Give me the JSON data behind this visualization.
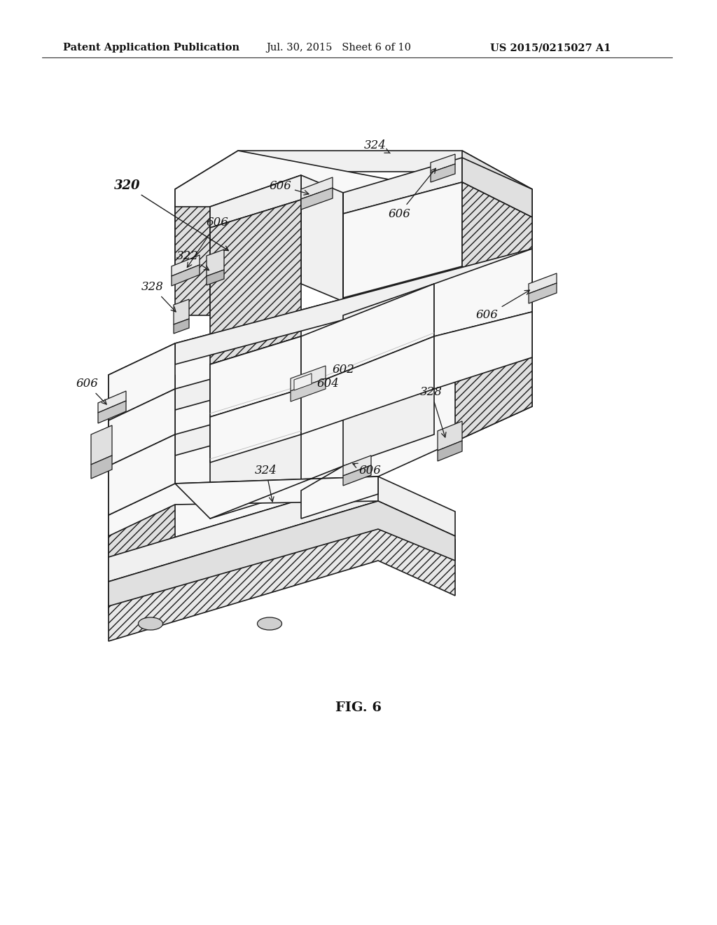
{
  "background_color": "#ffffff",
  "header_left": "Patent Application Publication",
  "header_mid": "Jul. 30, 2015   Sheet 6 of 10",
  "header_right": "US 2015/0215027 A1",
  "figure_label": "FIG. 6",
  "title_fontsize": 10.5,
  "label_fontsize": 12,
  "fig_label_fontsize": 14,
  "outline_color": "#1a1a1a",
  "hatch_color": "#888888",
  "face_white": "#ffffff",
  "face_light": "#f0f0f0",
  "face_mid": "#e0e0e0",
  "face_dark": "#cccccc"
}
